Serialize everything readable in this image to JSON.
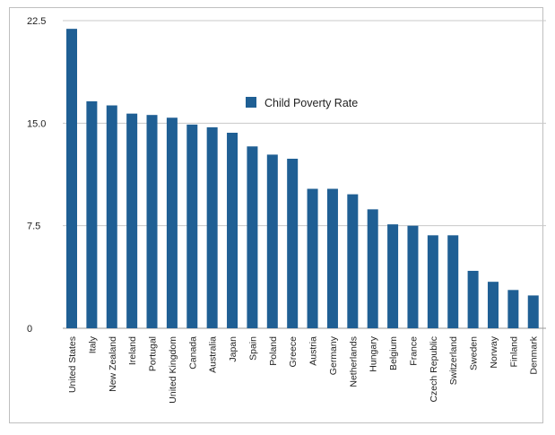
{
  "chart_data": {
    "type": "bar",
    "categories": [
      "United States",
      "Italy",
      "New Zealand",
      "Ireland",
      "Portugal",
      "United Kingdom",
      "Canada",
      "Australia",
      "Japan",
      "Spain",
      "Poland",
      "Greece",
      "Austria",
      "Germany",
      "Netherlands",
      "Hungary",
      "Belgium",
      "France",
      "Czech Republic",
      "Switzerland",
      "Sweden",
      "Norway",
      "Finland",
      "Denmark"
    ],
    "series": [
      {
        "name": "Child Poverty Rate",
        "values": [
          21.9,
          16.6,
          16.3,
          15.7,
          15.6,
          15.4,
          14.9,
          14.7,
          14.3,
          13.3,
          12.7,
          12.4,
          10.2,
          10.2,
          9.8,
          8.7,
          7.6,
          7.5,
          6.8,
          6.8,
          4.2,
          3.4,
          2.8,
          2.4
        ]
      }
    ],
    "ylim": [
      0,
      22.5
    ],
    "yticks": [
      "0",
      "7.5",
      "15.0",
      "22.5"
    ],
    "ytick_values": [
      0,
      7.5,
      15,
      22.5
    ],
    "grid": true,
    "legend": "top-center",
    "color": "#1f5f94"
  }
}
